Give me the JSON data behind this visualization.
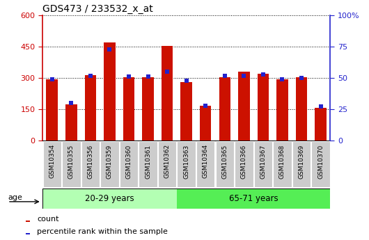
{
  "title": "GDS473 / 233532_x_at",
  "categories": [
    "GSM10354",
    "GSM10355",
    "GSM10356",
    "GSM10359",
    "GSM10360",
    "GSM10361",
    "GSM10362",
    "GSM10363",
    "GSM10364",
    "GSM10365",
    "GSM10366",
    "GSM10367",
    "GSM10368",
    "GSM10369",
    "GSM10370"
  ],
  "counts": [
    295,
    175,
    315,
    470,
    305,
    305,
    455,
    280,
    165,
    305,
    330,
    320,
    295,
    305,
    155
  ],
  "percentile_ranks": [
    49,
    30,
    52,
    73,
    51,
    51,
    55,
    48,
    28,
    52,
    52,
    53,
    49,
    50,
    27
  ],
  "group1_label": "20-29 years",
  "group2_label": "65-71 years",
  "group1_count": 7,
  "group2_count": 8,
  "ylim_left": [
    0,
    600
  ],
  "ylim_right": [
    0,
    100
  ],
  "yticks_left": [
    0,
    150,
    300,
    450,
    600
  ],
  "yticks_right": [
    0,
    25,
    50,
    75,
    100
  ],
  "bar_color": "#cc1100",
  "dot_color": "#2222cc",
  "group1_bg": "#b3ffb3",
  "group2_bg": "#55ee55",
  "tick_bg": "#cccccc",
  "legend_count": "count",
  "legend_pct": "percentile rank within the sample",
  "age_label": "age",
  "left_tick_color": "#cc0000",
  "right_tick_color": "#2222cc",
  "bar_width": 0.6
}
